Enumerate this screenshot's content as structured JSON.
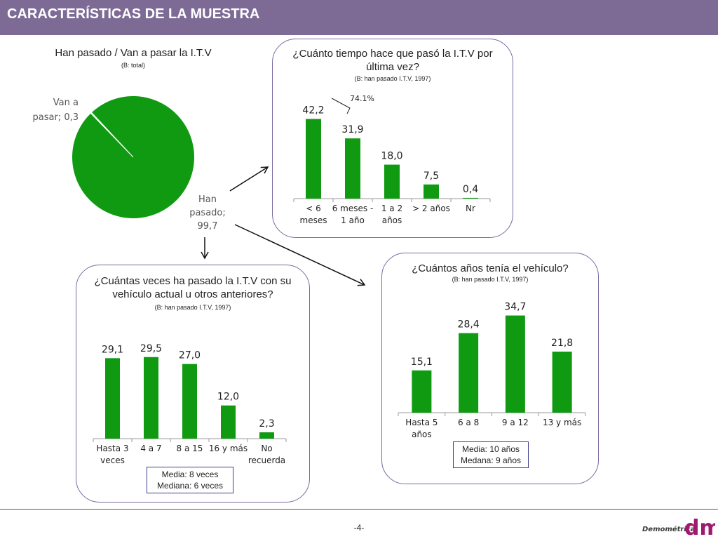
{
  "header": {
    "title": "CARACTERÍSTICAS DE LA MUESTRA"
  },
  "footer": {
    "page": "-4-",
    "logo_text": "Demométrica",
    "logo_mark": "dm"
  },
  "colors": {
    "bar": "#0f9a12",
    "header": "#7d6b96",
    "panel_border": "#7a6aa0"
  },
  "charts": {
    "pie": {
      "title": "Han pasado / Van a pasar la I.T.V",
      "base": "(B: total)",
      "label_small": [
        "Van a",
        "pasar; 0,3"
      ],
      "label_big": [
        "Han",
        "pasado;",
        "99,7"
      ]
    },
    "time": {
      "title": "¿Cuánto tiempo hace que pasó la I.T.V por última vez?",
      "base": "(B: han pasado I.T.V, 1997)",
      "bracket_label": "74.1%",
      "cat_labels": [
        [
          "< 6",
          "meses"
        ],
        [
          "6 meses -",
          "1 año"
        ],
        [
          "1 a 2",
          "años"
        ],
        [
          "> 2 años"
        ],
        [
          "Nr"
        ]
      ],
      "value_labels": [
        "42,2",
        "31,9",
        "18,0",
        "7,5",
        "0,4"
      ]
    },
    "times": {
      "title": "¿Cuántas veces ha pasado la I.T.V con su vehículo actual u otros anteriores?",
      "base": "(B: han pasado I.T.V, 1997)",
      "cat_labels": [
        [
          "Hasta 3",
          "veces"
        ],
        [
          "4 a 7"
        ],
        [
          "8 a 15"
        ],
        [
          "16 y más"
        ],
        [
          "No",
          "recuerda"
        ]
      ],
      "value_labels": [
        "29,1",
        "29,5",
        "27,0",
        "12,0",
        "2,3"
      ],
      "note": [
        "Media: 8 veces",
        "Mediana: 6 veces"
      ]
    },
    "age": {
      "title": "¿Cuántos años tenía el vehículo?",
      "base": "(B: han pasado I.T.V, 1997)",
      "cat_labels": [
        [
          "Hasta 5",
          "años"
        ],
        [
          "6 a 8"
        ],
        [
          "9 a 12"
        ],
        [
          "13 y más"
        ]
      ],
      "value_labels": [
        "15,1",
        "28,4",
        "34,7",
        "21,8"
      ],
      "note": [
        "Media: 10 años",
        "Medana: 9 años"
      ]
    }
  },
  "chart_data": [
    {
      "type": "pie",
      "title": "Han pasado / Van a pasar la I.T.V",
      "subtitle": "(B: total)",
      "categories": [
        "Han pasado",
        "Van a pasar"
      ],
      "values": [
        99.7,
        0.3
      ]
    },
    {
      "type": "bar",
      "title": "¿Cuánto tiempo hace que pasó la I.T.V por última vez?",
      "subtitle": "(B: han pasado I.T.V, 1997)",
      "categories": [
        "< 6 meses",
        "6 meses - 1 año",
        "1 a 2 años",
        "> 2 años",
        "Nr"
      ],
      "values": [
        42.2,
        31.9,
        18.0,
        7.5,
        0.4
      ],
      "annotation": "74.1%",
      "ylim": [
        0,
        50
      ]
    },
    {
      "type": "bar",
      "title": "¿Cuántas veces ha pasado la I.T.V con su vehículo actual u otros anteriores?",
      "subtitle": "(B: han pasado I.T.V, 1997)",
      "categories": [
        "Hasta 3 veces",
        "4 a 7",
        "8 a 15",
        "16 y más",
        "No recuerda"
      ],
      "values": [
        29.1,
        29.5,
        27.0,
        12.0,
        2.3
      ],
      "ylim": [
        0,
        40
      ]
    },
    {
      "type": "bar",
      "title": "¿Cuántos años tenía el vehículo?",
      "subtitle": "(B: han pasado I.T.V, 1997)",
      "categories": [
        "Hasta 5 años",
        "6 a 8",
        "9 a 12",
        "13 y más"
      ],
      "values": [
        15.1,
        28.4,
        34.7,
        21.8
      ],
      "ylim": [
        0,
        40
      ]
    }
  ]
}
